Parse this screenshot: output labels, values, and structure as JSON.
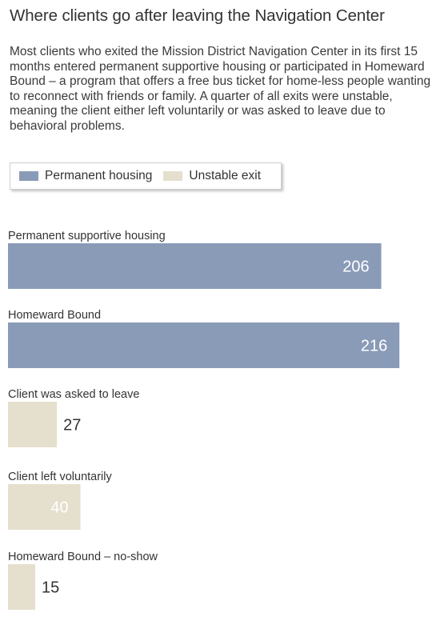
{
  "title": "Where clients go after leaving the Navigation Center",
  "description": "Most clients who exited the Mission District Navigation Center in its first 15 months entered permanent supportive housing or participated in Homeward Bound – a program that offers a free bus ticket for home-less people wanting to reconnect with friends or family. A quarter of all exits were unstable, meaning the client either left voluntarily or was asked to leave due to behavioral problems.",
  "legend": [
    {
      "label": "Permanent housing",
      "color": "#8a9bb8"
    },
    {
      "label": "Unstable exit",
      "color": "#e5dfcd"
    }
  ],
  "chart_data": {
    "type": "bar",
    "orientation": "horizontal",
    "categories": [
      "Permanent supportive housing",
      "Homeward Bound",
      "Client was asked to leave",
      "Client left voluntarily",
      "Homeward Bound – no-show"
    ],
    "values": [
      206,
      216,
      27,
      40,
      15
    ],
    "groups": [
      "Permanent housing",
      "Permanent housing",
      "Unstable exit",
      "Unstable exit",
      "Unstable exit"
    ],
    "xlim": [
      0,
      220
    ],
    "grid": false,
    "legend_position": "top-left"
  }
}
